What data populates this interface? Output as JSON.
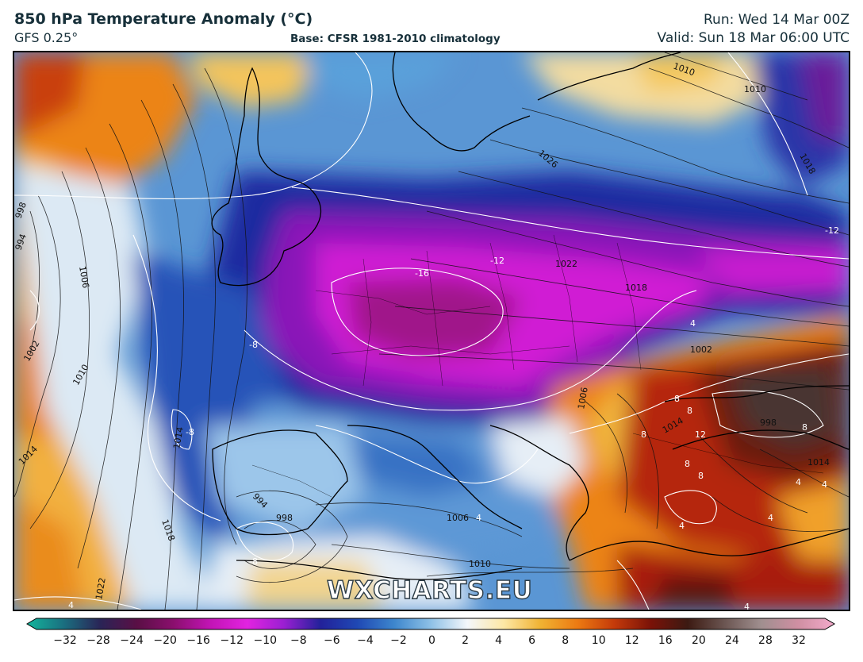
{
  "header": {
    "title": "850 hPa Temperature Anomaly (°C)",
    "model": "GFS 0.25°",
    "base": "Base: CFSR 1981-2010 climatology",
    "run": "Run: Wed 14 Mar 00Z",
    "valid": "Valid: Sun 18 Mar 06:00 UTC"
  },
  "watermark": "WXCHARTS.EU",
  "colorbar": {
    "ticks": [
      "−32",
      "−28",
      "−24",
      "−20",
      "−16",
      "−12",
      "−10",
      "−8",
      "−6",
      "−4",
      "−2",
      "0",
      "2",
      "4",
      "6",
      "8",
      "10",
      "12",
      "16",
      "20",
      "24",
      "28",
      "32"
    ],
    "stops": [
      "#13b59c",
      "#1a6f80",
      "#2a2456",
      "#5a0f45",
      "#8b0f6e",
      "#c214b5",
      "#e223e0",
      "#9a1fd2",
      "#22219a",
      "#1f48b4",
      "#3d86cd",
      "#8ec1e6",
      "#f4f7fb",
      "#fde7a4",
      "#f0b232",
      "#ec7a12",
      "#c43a0a",
      "#7a1208",
      "#3c1a12",
      "#6b5551",
      "#a08f8f",
      "#cf8fa2",
      "#f3aacb"
    ]
  },
  "map": {
    "isobar_labels": [
      "998",
      "994",
      "1006",
      "1002",
      "1010",
      "1014",
      "1014",
      "1018",
      "1022",
      "994",
      "998",
      "1006",
      "1010",
      "1010",
      "1026",
      "1022",
      "1018",
      "1018",
      "1010",
      "1002",
      "1006",
      "1014",
      "998",
      "1014"
    ],
    "anomaly_labels": [
      "-16",
      "-12",
      "-8",
      "-8",
      "-12",
      "4",
      "8",
      "8",
      "12",
      "8",
      "8",
      "8",
      "4",
      "4",
      "4",
      "8",
      "4",
      "-8",
      "4",
      "4",
      "4"
    ],
    "colors": {
      "warm_orange": "#ee8a18",
      "hot_red": "#a01a0a",
      "very_hot_brown": "#4a2e2a",
      "cold_blue": "#2f6fc4",
      "deep_blue": "#1a1e9a",
      "purple": "#7a15b5",
      "magenta": "#d21bd6",
      "near_zero": "#f3f6fa"
    }
  }
}
